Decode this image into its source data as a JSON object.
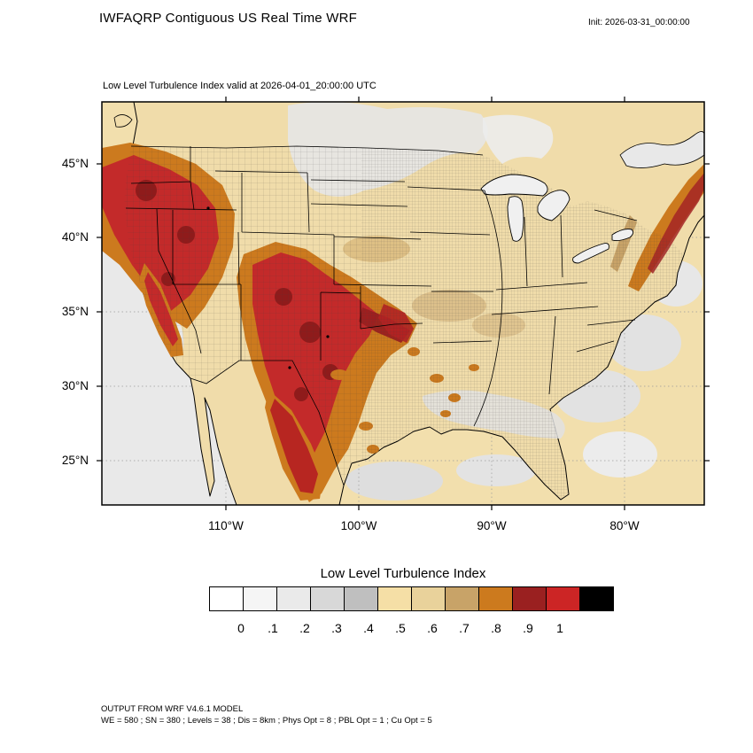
{
  "title": "IWFAQRP Contiguous US Real Time WRF",
  "init": "Init: 2026-03-31_00:00:00",
  "map": {
    "subtitle": "Low Level Turbulence Index valid at 2026-04-01_20:00:00 UTC",
    "lat_labels": [
      "45°N",
      "40°N",
      "35°N",
      "30°N",
      "25°N"
    ],
    "lon_labels": [
      "110°W",
      "100°W",
      "90°W",
      "80°W"
    ]
  },
  "colorbar": {
    "title": "Low Level Turbulence Index",
    "ticks": [
      "0",
      ".1",
      ".2",
      ".3",
      ".4",
      ".5",
      ".6",
      ".7",
      ".8",
      ".9",
      "1"
    ],
    "colors": [
      "#ffffff",
      "#f5f5f5",
      "#eaeaea",
      "#d8d8d8",
      "#bfbfbf",
      "#f5dfa6",
      "#e9d29b",
      "#c8a368",
      "#cc7a1e",
      "#9a2020",
      "#cc2525",
      "#000000"
    ]
  },
  "footer": {
    "line1": "OUTPUT FROM WRF V4.6.1 MODEL",
    "line2": "WE = 580 ; SN = 380 ; Levels = 38 ; Dis = 8km ; Phys Opt = 8 ; PBL Opt = 1 ; Cu Opt = 5"
  },
  "chart_data": {
    "type": "heatmap",
    "title": "Low Level Turbulence Index",
    "legend_boundaries": [
      0,
      0.1,
      0.2,
      0.3,
      0.4,
      0.5,
      0.6,
      0.7,
      0.8,
      0.9,
      1
    ],
    "legend_position": "bottom",
    "lat_ticks_deg_n": [
      45,
      40,
      35,
      30,
      25
    ],
    "lon_ticks_deg_w": [
      110,
      100,
      90,
      80
    ],
    "high_value_regions": [
      "Pacific Northwest / Great Basin",
      "Colorado Rockies / New Mexico / Texas Panhandle into Kansas",
      "Sierra Madre (Mexico)",
      "Appalachians (eastern edge)"
    ]
  }
}
